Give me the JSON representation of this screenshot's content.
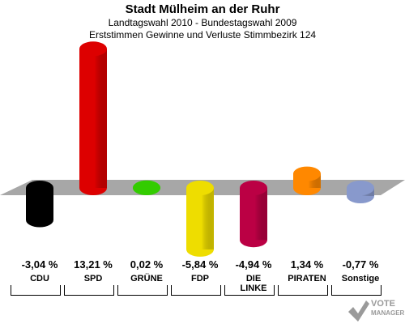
{
  "header": {
    "title": "Stadt Mülheim an der Ruhr",
    "subtitle1": "Landtagswahl 2010 - Bundestagswahl 2009",
    "subtitle2": "Erststimmen Gewinne und Verluste Stimmbezirk 124"
  },
  "logo": {
    "line1": "VOTE",
    "line2": "MANAGER"
  },
  "chart_data": {
    "type": "bar",
    "title": "Stadt Mülheim an der Ruhr",
    "subtitle": "Landtagswahl 2010 - Bundestagswahl 2009 / Erststimmen Gewinne und Verluste Stimmbezirk 124",
    "categories": [
      "CDU",
      "SPD",
      "GRÜNE",
      "FDP",
      "DIE LINKE",
      "PIRATEN",
      "Sonstige"
    ],
    "category_lines": [
      [
        "CDU"
      ],
      [
        "SPD"
      ],
      [
        "GRÜNE"
      ],
      [
        "FDP"
      ],
      [
        "DIE",
        "LINKE"
      ],
      [
        "PIRATEN"
      ],
      [
        "Sonstige"
      ]
    ],
    "values": [
      -3.04,
      13.21,
      0.02,
      -5.84,
      -4.94,
      1.34,
      -0.77
    ],
    "value_labels": [
      "-3,04 %",
      "13,21 %",
      "0,02 %",
      "-5,84 %",
      "-4,94 %",
      "1,34 %",
      "-0,77 %"
    ],
    "colors": [
      "#000000",
      "#dd0000",
      "#33cc00",
      "#eedd00",
      "#bb0044",
      "#ff8800",
      "#8899cc"
    ],
    "xlabel": "",
    "ylabel": "",
    "grid": false,
    "legend": "none"
  }
}
